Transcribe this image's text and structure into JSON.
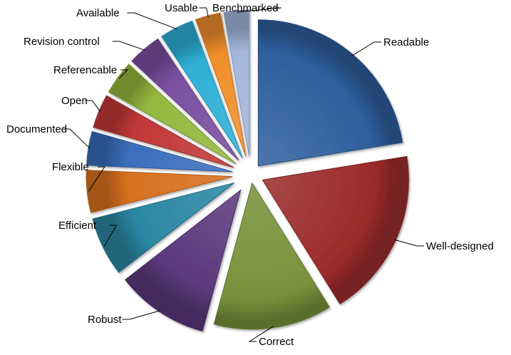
{
  "chart_data": {
    "type": "pie",
    "exploded": true,
    "legend": "none",
    "categories": [
      "Readable",
      "Well-designed",
      "Correct",
      "Robust",
      "Efficient",
      "Flexible",
      "Documented",
      "Open",
      "Referencable",
      "Revision control",
      "Available",
      "Usable",
      "Benchmarked"
    ],
    "values": [
      24,
      20,
      14,
      11,
      7,
      5,
      4,
      4,
      4,
      4,
      4,
      3,
      3
    ],
    "colors": [
      "#2f5f9e",
      "#9b2b2b",
      "#77923b",
      "#5b3a7d",
      "#2a87a3",
      "#d8701f",
      "#3a6fbd",
      "#c23838",
      "#94b83d",
      "#7a4fa0",
      "#2fb0d6",
      "#f08f2a",
      "#a3b6dc"
    ]
  }
}
